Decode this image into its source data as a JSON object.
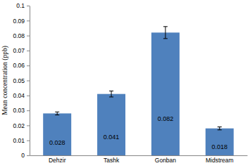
{
  "chart_data": {
    "type": "bar",
    "y_label": "Mean concentration (ppb)",
    "categories": [
      "Dehzir",
      "Tashk",
      "Gonban",
      "Midstream"
    ],
    "values": [
      0.028,
      0.041,
      0.082,
      0.018
    ],
    "errors": [
      0.001,
      0.002,
      0.004,
      0.001
    ],
    "color": "#4f81bd",
    "ylim": [
      0,
      0.1
    ],
    "yticks": [
      0,
      0.01,
      0.02,
      0.03,
      0.04,
      0.05,
      0.06,
      0.07,
      0.08,
      0.09,
      0.1
    ],
    "grid": false,
    "data_labels": true
  }
}
